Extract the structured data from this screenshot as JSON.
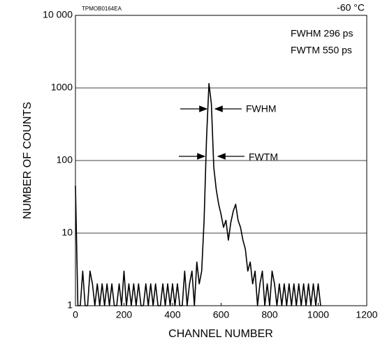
{
  "chart_data": {
    "type": "line",
    "code": "TPMOB0164EA",
    "temperature": "-60 °C",
    "annotations": [
      "FWHM 296 ps",
      "FWTM 550 ps",
      "FWHM",
      "FWTM"
    ],
    "xlabel": "CHANNEL NUMBER",
    "ylabel": "NUMBER OF COUNTS",
    "log_y": true,
    "grid": true,
    "color": "#000000",
    "xlim": [
      0,
      1200
    ],
    "xticks": [
      0,
      200,
      400,
      600,
      800,
      1000,
      1200
    ],
    "ylim": [
      1,
      10000
    ],
    "yticks": [
      1,
      10,
      100,
      1000,
      {
        "value": 10000,
        "label": "10 000"
      }
    ],
    "x": [
      0,
      10,
      20,
      30,
      40,
      50,
      60,
      70,
      80,
      90,
      100,
      110,
      120,
      130,
      140,
      150,
      160,
      170,
      180,
      190,
      200,
      210,
      220,
      230,
      240,
      250,
      260,
      270,
      280,
      290,
      300,
      310,
      320,
      330,
      340,
      350,
      360,
      370,
      380,
      390,
      400,
      410,
      420,
      430,
      440,
      450,
      460,
      470,
      480,
      490,
      500,
      510,
      520,
      530,
      540,
      550,
      560,
      570,
      580,
      590,
      600,
      610,
      620,
      630,
      640,
      650,
      660,
      670,
      680,
      690,
      700,
      710,
      720,
      730,
      740,
      750,
      760,
      770,
      780,
      790,
      800,
      810,
      820,
      830,
      840,
      850,
      860,
      870,
      880,
      890,
      900,
      910,
      920,
      930,
      940,
      950,
      960,
      970,
      980,
      990,
      1000,
      1010
    ],
    "values": [
      45,
      1,
      1,
      3,
      1,
      1,
      3,
      2,
      1,
      2,
      1,
      2,
      1,
      2,
      1,
      2,
      1,
      1,
      2,
      1,
      3,
      1,
      2,
      1,
      2,
      1,
      2,
      1,
      1,
      2,
      1,
      2,
      1,
      2,
      1,
      1,
      2,
      1,
      2,
      1,
      2,
      1,
      2,
      1,
      1,
      3,
      1,
      2,
      3,
      1,
      4,
      2,
      3,
      15,
      200,
      1150,
      600,
      80,
      40,
      25,
      18,
      12,
      15,
      8,
      14,
      20,
      25,
      15,
      12,
      8,
      6,
      3,
      4,
      2,
      3,
      1,
      2,
      3,
      1,
      2,
      1,
      3,
      2,
      1,
      2,
      1,
      2,
      1,
      2,
      1,
      2,
      1,
      2,
      1,
      2,
      1,
      2,
      1,
      2,
      1,
      2,
      1
    ]
  }
}
